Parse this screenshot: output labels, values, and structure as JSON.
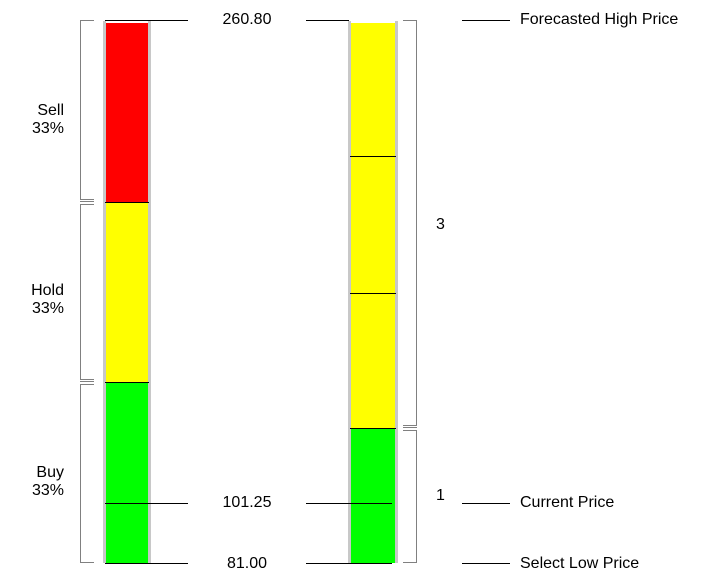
{
  "zones": [
    {
      "name": "Sell",
      "pct": "33%",
      "color": "#ff0000"
    },
    {
      "name": "Hold",
      "pct": "33%",
      "color": "#ffff00"
    },
    {
      "name": "Buy",
      "pct": "33%",
      "color": "#00ff00"
    }
  ],
  "prices": {
    "high": "260.80",
    "current": "101.25",
    "low": "81.00"
  },
  "legend": {
    "high": "Forecasted High Price",
    "current": "Current Price",
    "low": "Select Low Price"
  },
  "right_column": {
    "upper_count": "3",
    "lower_count": "1",
    "upper_color": "#ffff00",
    "lower_color": "#00ff00"
  }
}
